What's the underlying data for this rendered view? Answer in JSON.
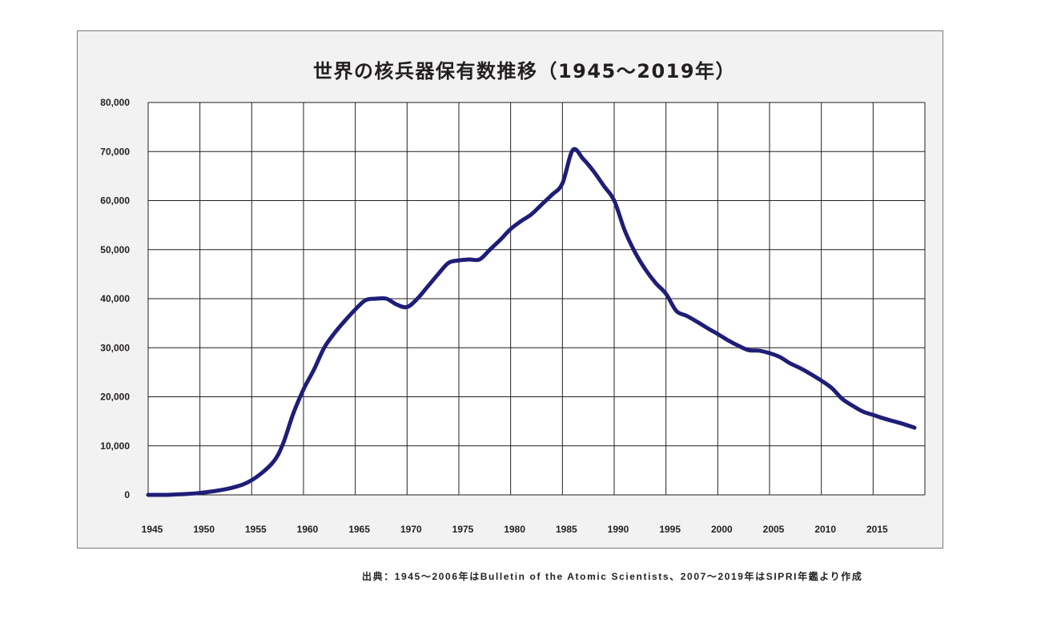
{
  "chart_data": {
    "type": "line",
    "title": "世界の核兵器保有数推移（1945〜2019年）",
    "xlabel": "",
    "ylabel": "",
    "xlim": [
      1945,
      2020
    ],
    "ylim": [
      0,
      80000
    ],
    "grid": true,
    "x_ticks": [
      "1945",
      "1950",
      "1955",
      "1960",
      "1965",
      "1970",
      "1975",
      "1980",
      "1985",
      "1990",
      "1995",
      "2000",
      "2005",
      "2010",
      "2015"
    ],
    "y_ticks": [
      "0",
      "10,000",
      "20,000",
      "30,000",
      "40,000",
      "50,000",
      "60,000",
      "70,000",
      "80,000"
    ],
    "line_color": "#1e1e78",
    "series": [
      {
        "name": "核兵器保有数",
        "x": [
          1945,
          1947,
          1950,
          1953,
          1955,
          1957,
          1958,
          1959,
          1960,
          1961,
          1962,
          1963,
          1964,
          1965,
          1966,
          1967,
          1968,
          1969,
          1970,
          1971,
          1972,
          1973,
          1974,
          1975,
          1976,
          1977,
          1978,
          1979,
          1980,
          1981,
          1982,
          1983,
          1984,
          1985,
          1986,
          1987,
          1988,
          1989,
          1990,
          1991,
          1992,
          1993,
          1994,
          1995,
          1996,
          1997,
          1998,
          1999,
          2000,
          2001,
          2002,
          2003,
          2004,
          2005,
          2006,
          2007,
          2008,
          2009,
          2010,
          2011,
          2012,
          2013,
          2014,
          2015,
          2016,
          2017,
          2018,
          2019
        ],
        "values": [
          0,
          30,
          400,
          1400,
          3000,
          6500,
          10300,
          16500,
          21500,
          25500,
          30000,
          33000,
          35500,
          37800,
          39700,
          40000,
          40000,
          38800,
          38300,
          40000,
          42500,
          45000,
          47300,
          47800,
          48000,
          48000,
          50000,
          52000,
          54200,
          55800,
          57200,
          59200,
          61200,
          63500,
          70300,
          68500,
          66000,
          63000,
          60000,
          54000,
          49500,
          46000,
          43200,
          41000,
          37500,
          36500,
          35300,
          34000,
          32800,
          31500,
          30400,
          29500,
          29400,
          28900,
          28100,
          26800,
          25800,
          24600,
          23300,
          21800,
          19600,
          18200,
          17000,
          16300,
          15600,
          15000,
          14400,
          13700
        ]
      }
    ]
  },
  "source_note": "出典：1945〜2006年はBulletin of the Atomic Scientists、2007〜2019年はSIPRI年鑑より作成"
}
